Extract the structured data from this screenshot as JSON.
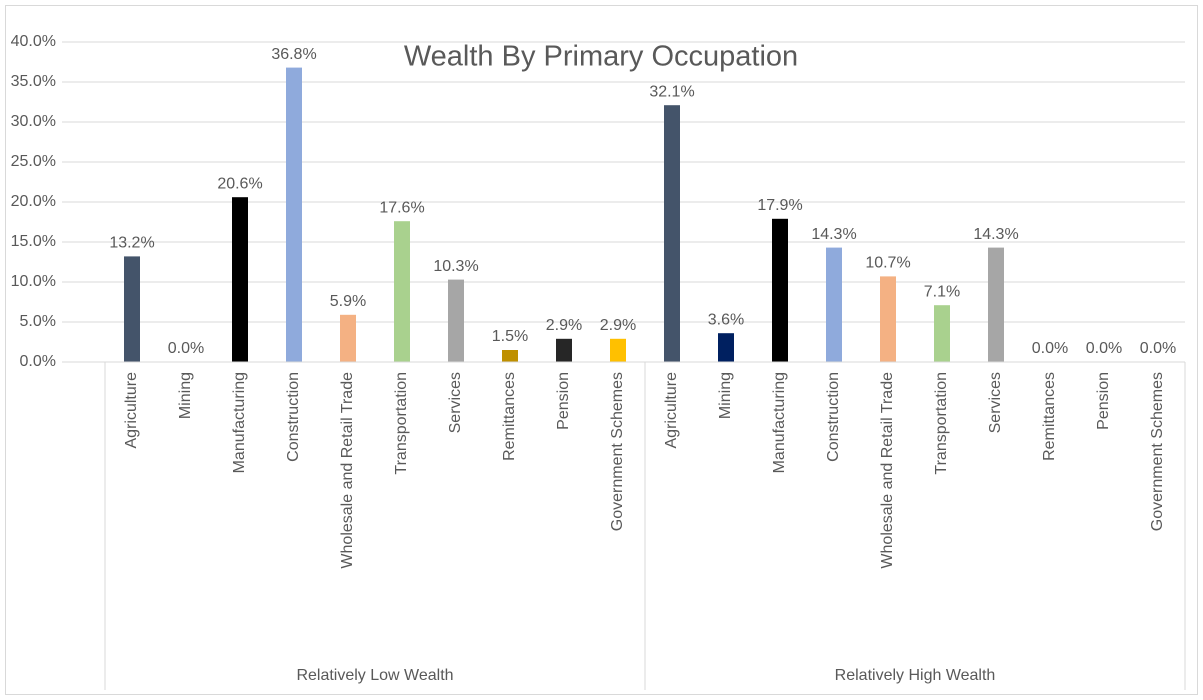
{
  "chart_data": {
    "type": "bar",
    "title": "Wealth By Primary Occupation",
    "ylim": [
      0,
      40
    ],
    "yticks": [
      {
        "value": 0,
        "label": "0.0%"
      },
      {
        "value": 5,
        "label": "5.0%"
      },
      {
        "value": 10,
        "label": "10.0%"
      },
      {
        "value": 15,
        "label": "15.0%"
      },
      {
        "value": 20,
        "label": "20.0%"
      },
      {
        "value": 25,
        "label": "25.0%"
      },
      {
        "value": 30,
        "label": "30.0%"
      },
      {
        "value": 35,
        "label": "35.0%"
      },
      {
        "value": 40,
        "label": "40.0%"
      }
    ],
    "grid": true,
    "colors": [
      "#44546a",
      "#002060",
      "#000000",
      "#8faadc",
      "#f4b183",
      "#a9d18e",
      "#a6a6a6",
      "#bf9000",
      "#262626",
      "#ffc000"
    ],
    "groups": [
      {
        "name": "Relatively Low Wealth",
        "categories": [
          "Agriculture",
          "Mining",
          "Manufacturing",
          "Construction",
          "Wholesale and Retail Trade",
          "Transportation",
          "Services",
          "Remittances",
          "Pension",
          "Government Schemes"
        ],
        "values": [
          13.2,
          0.0,
          20.6,
          36.8,
          5.9,
          17.6,
          10.3,
          1.5,
          2.9,
          2.9
        ],
        "value_labels": [
          "13.2%",
          "0.0%",
          "20.6%",
          "36.8%",
          "5.9%",
          "17.6%",
          "10.3%",
          "1.5%",
          "2.9%",
          "2.9%"
        ]
      },
      {
        "name": "Relatively High Wealth",
        "categories": [
          "Agriculture",
          "Mining",
          "Manufacturing",
          "Construction",
          "Wholesale and Retail Trade",
          "Transportation",
          "Services",
          "Remittances",
          "Pension",
          "Government Schemes"
        ],
        "values": [
          32.1,
          3.6,
          17.9,
          14.3,
          10.7,
          7.1,
          14.3,
          0.0,
          0.0,
          0.0
        ],
        "value_labels": [
          "32.1%",
          "3.6%",
          "17.9%",
          "14.3%",
          "10.7%",
          "7.1%",
          "14.3%",
          "0.0%",
          "0.0%",
          "0.0%"
        ]
      }
    ]
  }
}
